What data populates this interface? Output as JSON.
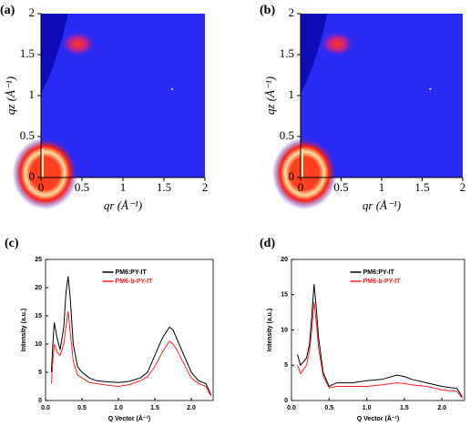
{
  "chart_data": [
    {
      "type": "image",
      "label": "(a)",
      "xlabel": "qr (Å⁻¹)",
      "ylabel": "qz (Å⁻¹)",
      "xlim": [
        0,
        2
      ],
      "ylim": [
        0,
        2
      ],
      "xticks": [
        0,
        0.5,
        1,
        1.5,
        2
      ],
      "yticks": [
        0,
        0.5,
        1,
        1.5,
        2
      ]
    },
    {
      "type": "image",
      "label": "(b)",
      "xlabel": "qr (Å⁻¹)",
      "ylabel": "qz (Å⁻¹)",
      "xlim": [
        0,
        2
      ],
      "ylim": [
        0,
        2
      ],
      "xticks": [
        0,
        0.5,
        1,
        1.5,
        2
      ],
      "yticks": [
        0,
        0.5,
        1,
        1.5,
        2
      ]
    },
    {
      "type": "line",
      "label": "(c)",
      "xlabel": "Q Vector (Å⁻¹)",
      "ylabel": "Intensity (a.u.)",
      "xlim": [
        0,
        2.3
      ],
      "ylim": [
        0,
        25
      ],
      "xticks": [
        {
          "value": 0,
          "label": "0.0"
        },
        {
          "value": 0.5,
          "label": "0.5"
        },
        {
          "value": 1,
          "label": "1.0"
        },
        {
          "value": 1.5,
          "label": "1.5"
        },
        {
          "value": 2,
          "label": "2.0"
        }
      ],
      "yticks": [
        0,
        5,
        10,
        15,
        20,
        25
      ],
      "x": [
        0.08,
        0.1,
        0.12,
        0.16,
        0.2,
        0.25,
        0.28,
        0.31,
        0.34,
        0.38,
        0.44,
        0.5,
        0.6,
        0.7,
        0.85,
        1.0,
        1.15,
        1.3,
        1.4,
        1.5,
        1.6,
        1.7,
        1.75,
        1.8,
        1.9,
        2.0,
        2.1,
        2.2,
        2.27
      ],
      "series": [
        {
          "name": "PM6:PY-IT",
          "color": "#000000",
          "values": [
            5,
            10,
            13.8,
            11,
            9,
            13,
            19,
            22,
            18,
            10,
            6,
            5,
            4,
            3.5,
            3.3,
            3.2,
            3.4,
            4,
            5,
            8,
            11,
            13,
            12.5,
            11,
            8,
            5,
            3.5,
            3,
            1
          ]
        },
        {
          "name": "PM6-b-PY-IT",
          "color": "#ff2020",
          "values": [
            3,
            7,
            10,
            8.5,
            8,
            10,
            13,
            15.8,
            12,
            7,
            4.5,
            4,
            3.2,
            3,
            2.7,
            2.5,
            2.8,
            3.5,
            4.2,
            6,
            8.5,
            10.5,
            10,
            9,
            6.5,
            4,
            3,
            2.5,
            0.8
          ]
        }
      ]
    },
    {
      "type": "line",
      "label": "(d)",
      "xlabel": "Q Vector (Å⁻¹)",
      "ylabel": "Intensity (a.u.)",
      "xlim": [
        0,
        2.3
      ],
      "ylim": [
        0,
        20
      ],
      "xticks": [
        {
          "value": 0,
          "label": "0.0"
        },
        {
          "value": 0.5,
          "label": "0.5"
        },
        {
          "value": 1,
          "label": "1.0"
        },
        {
          "value": 1.5,
          "label": "1.5"
        },
        {
          "value": 2,
          "label": "2.0"
        }
      ],
      "yticks": [
        0,
        5,
        10,
        15,
        20
      ],
      "x": [
        0.08,
        0.12,
        0.2,
        0.24,
        0.27,
        0.3,
        0.33,
        0.36,
        0.42,
        0.5,
        0.6,
        0.8,
        1.0,
        1.2,
        1.4,
        1.5,
        1.6,
        1.8,
        2.0,
        2.2,
        2.27
      ],
      "series": [
        {
          "name": "PM6:PY-IT",
          "color": "#000000",
          "values": [
            6.5,
            5,
            6,
            8,
            12,
            16.5,
            13,
            9,
            4,
            2,
            2.5,
            2.5,
            2.8,
            3,
            3.6,
            3.4,
            3,
            2.5,
            2,
            1.7,
            0.5
          ]
        },
        {
          "name": "PM6-b-PY-IT",
          "color": "#ff2020",
          "values": [
            5,
            3.8,
            5,
            7,
            10,
            14,
            11,
            7.5,
            3.5,
            1.8,
            2,
            2,
            2,
            2.2,
            2.5,
            2.4,
            2.2,
            2,
            1.5,
            1.3,
            0.3
          ]
        }
      ]
    }
  ]
}
